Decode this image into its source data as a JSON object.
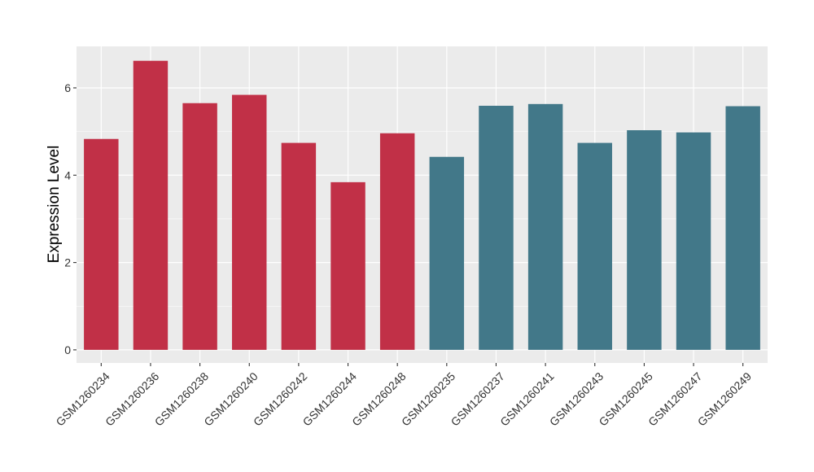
{
  "chart_data": {
    "type": "bar",
    "title": "",
    "xlabel": "",
    "ylabel": "Expression Level",
    "ylim": [
      -0.3,
      6.95
    ],
    "yticks": [
      0,
      2,
      4,
      6
    ],
    "grid": true,
    "legend": "none",
    "colors": {
      "panel": "#ebebeb",
      "grid": "#ffffff",
      "group_a": "#c13047",
      "group_b": "#427889"
    },
    "categories": [
      "GSM1260234",
      "GSM1260236",
      "GSM1260238",
      "GSM1260240",
      "GSM1260242",
      "GSM1260244",
      "GSM1260248",
      "GSM1260235",
      "GSM1260237",
      "GSM1260241",
      "GSM1260243",
      "GSM1260245",
      "GSM1260247",
      "GSM1260249"
    ],
    "values": [
      4.83,
      6.62,
      5.65,
      5.84,
      4.74,
      3.84,
      4.96,
      4.42,
      5.59,
      5.63,
      4.74,
      5.03,
      4.98,
      5.58
    ],
    "bar_groups": [
      "a",
      "a",
      "a",
      "a",
      "a",
      "a",
      "a",
      "b",
      "b",
      "b",
      "b",
      "b",
      "b",
      "b"
    ]
  }
}
